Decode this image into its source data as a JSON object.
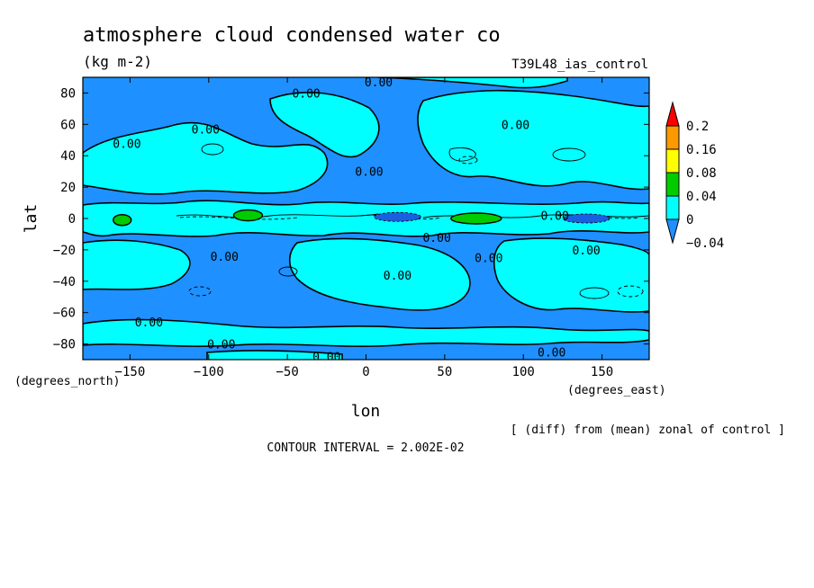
{
  "chart_data": {
    "type": "heatmap",
    "title": "atmosphere cloud condensed water co",
    "units": "(kg m-2)",
    "run_label": "T39L48_ias_control",
    "xlabel": "lon",
    "ylabel": "lat",
    "x_units": "(degrees_east)",
    "y_units": "(degrees_north)",
    "xlim": [
      -180,
      180
    ],
    "ylim": [
      -90,
      90
    ],
    "x_ticks": [
      -150,
      -100,
      -50,
      0,
      50,
      100,
      150
    ],
    "y_ticks": [
      80,
      60,
      40,
      20,
      0,
      -20,
      -40,
      -60,
      -80
    ],
    "x_tick_labels": [
      "−150",
      "−100",
      "−50",
      "0",
      "50",
      "100",
      "150"
    ],
    "y_tick_labels": [
      "80",
      "60",
      "40",
      "20",
      "0",
      "−20",
      "−40",
      "−60",
      "−80"
    ],
    "colorbar": {
      "levels": [
        -0.04,
        0,
        0.04,
        0.08,
        0.16,
        0.2
      ],
      "labels": [
        "−0.04",
        "0",
        "0.04",
        "0.08",
        "0.16",
        "0.2"
      ],
      "colors": [
        "#1e90ff",
        "#00ffff",
        "#00cc00",
        "#ffff00",
        "#ff9900",
        "#ff0000"
      ]
    },
    "contour_labels": [
      {
        "text": "0.00",
        "lon": 8,
        "lat": 87
      },
      {
        "text": "0.00",
        "lon": -38,
        "lat": 80
      },
      {
        "text": "0.00",
        "lon": 95,
        "lat": 60
      },
      {
        "text": "0.00",
        "lon": -102,
        "lat": 57
      },
      {
        "text": "0.00",
        "lon": -152,
        "lat": 48
      },
      {
        "text": "0.00",
        "lon": 2,
        "lat": 30
      },
      {
        "text": "0.00",
        "lon": 120,
        "lat": 2
      },
      {
        "text": "0.00",
        "lon": 45,
        "lat": -12
      },
      {
        "text": "0.00",
        "lon": 140,
        "lat": -20
      },
      {
        "text": "0.00",
        "lon": 78,
        "lat": -25
      },
      {
        "text": "0.00",
        "lon": -90,
        "lat": -24
      },
      {
        "text": "0.00",
        "lon": 20,
        "lat": -36
      },
      {
        "text": "0.00",
        "lon": -138,
        "lat": -66
      },
      {
        "text": "0.00",
        "lon": -92,
        "lat": -80
      },
      {
        "text": "0.00",
        "lon": -25,
        "lat": -88
      },
      {
        "text": "0.00",
        "lon": 118,
        "lat": -85
      }
    ],
    "features": {
      "positive_band_lat_range": [
        -5,
        5
      ],
      "strong_positive_centers": [
        {
          "lon": -155,
          "lat": -1,
          "level": 0.04
        },
        {
          "lon": -75,
          "lat": 2,
          "level": 0.04
        },
        {
          "lon": 70,
          "lat": 0,
          "level": 0.04
        }
      ],
      "strong_negative_centers": [
        {
          "lon": 20,
          "lat": 1,
          "level": -0.04
        },
        {
          "lon": 140,
          "lat": 0,
          "level": -0.04
        }
      ]
    },
    "contour_interval": "CONTOUR INTERVAL = 2.002E-02",
    "footnote": "[ (diff) from (mean) zonal of control ]"
  }
}
